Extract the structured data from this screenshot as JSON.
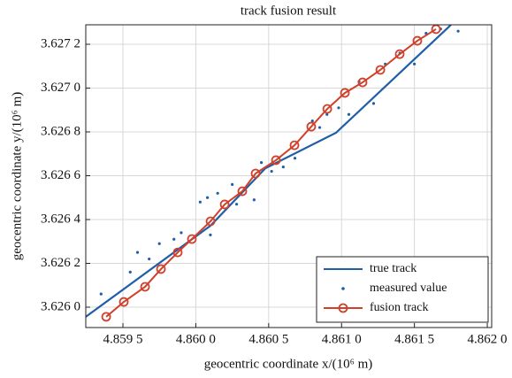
{
  "chart_data": {
    "type": "line",
    "title": "track fusion result",
    "x_label": "geocentric coordinate x/(10⁶ m)",
    "y_label": "geocentric coordinate y/(10⁶ m)",
    "xlim": [
      4.859245,
      4.86203
    ],
    "ylim": [
      3.625907,
      3.627289
    ],
    "xticks": [
      {
        "value": 4.8595,
        "label": "4.859 5"
      },
      {
        "value": 4.86,
        "label": "4.860 0"
      },
      {
        "value": 4.8605,
        "label": "4.860 5"
      },
      {
        "value": 4.861,
        "label": "4.861 0"
      },
      {
        "value": 4.8615,
        "label": "4.861 5"
      },
      {
        "value": 4.862,
        "label": "4.862 0"
      }
    ],
    "yticks": [
      {
        "value": 3.626,
        "label": "3.626 0"
      },
      {
        "value": 3.6262,
        "label": "3.626 2"
      },
      {
        "value": 3.6264,
        "label": "3.626 4"
      },
      {
        "value": 3.6266,
        "label": "3.626 6"
      },
      {
        "value": 3.6268,
        "label": "3.626 8"
      },
      {
        "value": 3.627,
        "label": "3.627 0"
      },
      {
        "value": 3.6272,
        "label": "3.627 2"
      }
    ],
    "grid": true,
    "legend": "lower right",
    "series": [
      {
        "name": "true track",
        "kind": "line",
        "color": "#1f5fa8",
        "x": [
          4.859245,
          4.860101,
          4.860477,
          4.860962,
          4.861751
        ],
        "values": [
          3.625956,
          3.626372,
          3.626634,
          3.626796,
          3.627289
        ]
      },
      {
        "name": "measured value",
        "kind": "scatter",
        "color": "#1f5fa8",
        "x": [
          4.85935,
          4.85955,
          4.8596,
          4.85968,
          4.85975,
          4.85985,
          4.8599,
          4.86003,
          4.86008,
          4.8601,
          4.86015,
          4.86025,
          4.86028,
          4.8604,
          4.86045,
          4.86052,
          4.8606,
          4.86068,
          4.8608,
          4.86085,
          4.8609,
          4.86098,
          4.86105,
          4.86112,
          4.86122,
          4.8613,
          4.8614,
          4.8615,
          4.86158,
          4.86168,
          4.8618
        ],
        "values": [
          3.62606,
          3.62616,
          3.62625,
          3.62622,
          3.62629,
          3.62631,
          3.62634,
          3.62648,
          3.6265,
          3.62633,
          3.62652,
          3.62656,
          3.62647,
          3.62649,
          3.62666,
          3.62662,
          3.62664,
          3.62668,
          3.62685,
          3.62682,
          3.62688,
          3.62691,
          3.62688,
          3.62703,
          3.62693,
          3.62711,
          3.62716,
          3.62711,
          3.62725,
          3.62727,
          3.62726
        ]
      },
      {
        "name": "fusion track",
        "kind": "line-marker",
        "color": "#d0402a",
        "x": [
          4.859385,
          4.859506,
          4.859652,
          4.859761,
          4.859876,
          4.859973,
          4.860101,
          4.860198,
          4.860319,
          4.86041,
          4.86055,
          4.860677,
          4.860792,
          4.860902,
          4.861023,
          4.861144,
          4.861266,
          4.861399,
          4.86152,
          4.861648
        ],
        "values": [
          3.625956,
          3.626024,
          3.626093,
          3.626174,
          3.62625,
          3.626311,
          3.626392,
          3.626469,
          3.626529,
          3.62661,
          3.626671,
          3.626739,
          3.626824,
          3.626905,
          3.626978,
          3.627026,
          3.627083,
          3.627155,
          3.627216,
          3.627269
        ]
      }
    ]
  }
}
